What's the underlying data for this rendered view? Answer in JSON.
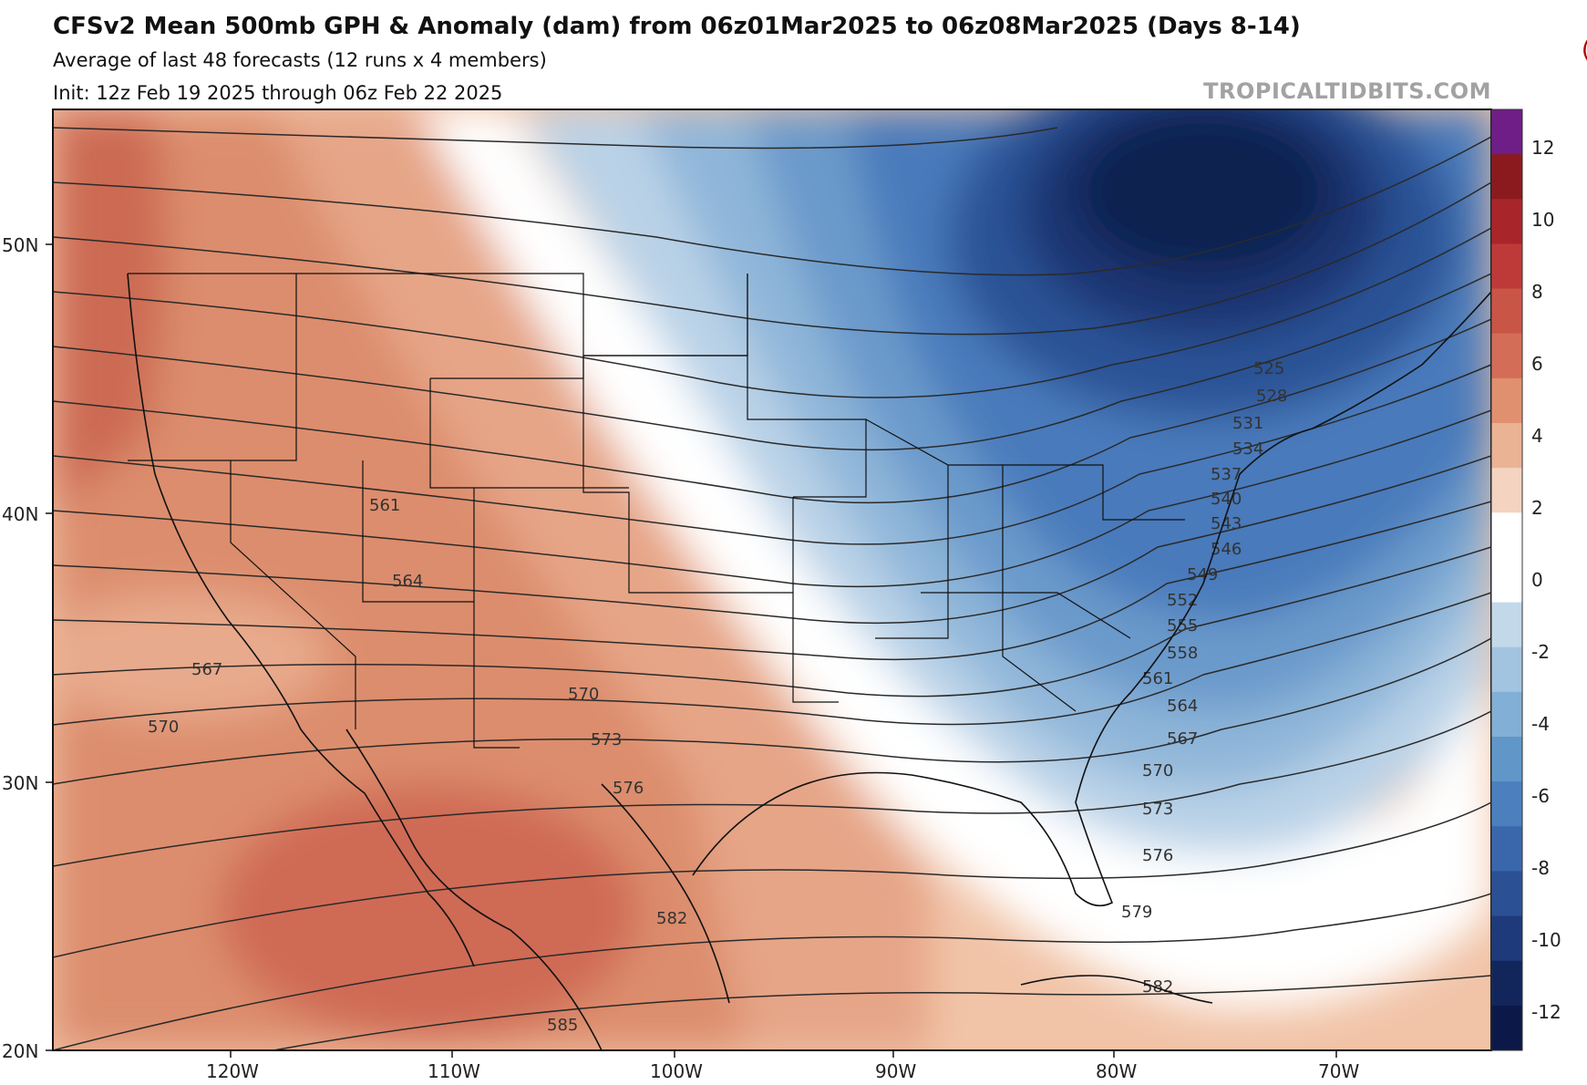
{
  "header": {
    "title": "CFSv2 Mean 500mb GPH & Anomaly (dam) from 06z01Mar2025 to 06z08Mar2025 (Days 8-14)",
    "subtitle_1": "Average of last 48 forecasts (12 runs x 4 members)",
    "subtitle_2": "Init: 12z Feb 19 2025 through 06z Feb 22 2025",
    "brand": "TROPICALTIDBITS.COM",
    "corner_mark": "("
  },
  "axes": {
    "lat_labels": [
      "50N",
      "40N",
      "30N",
      "20N"
    ],
    "lon_labels": [
      "120W",
      "110W",
      "100W",
      "90W",
      "80W",
      "70W"
    ]
  },
  "colorbar": {
    "labels": [
      "12",
      "10",
      "8",
      "6",
      "4",
      "2",
      "0",
      "-2",
      "-4",
      "-6",
      "-8",
      "-10",
      "-12"
    ],
    "colors": [
      "#6e1e86",
      "#8b1a1f",
      "#a8252a",
      "#be3a39",
      "#c95547",
      "#d36d57",
      "#e0906f",
      "#eab394",
      "#f4d3c0",
      "#ffffff",
      "#ffffff",
      "#c3d9ea",
      "#a3c4e0",
      "#82afd5",
      "#6196c8",
      "#4b7fbd",
      "#3a67ac",
      "#2c5094",
      "#1e3a7a",
      "#13265c",
      "#0b1848"
    ]
  },
  "contours": {
    "labels": [
      "525",
      "528",
      "531",
      "534",
      "537",
      "540",
      "543",
      "546",
      "549",
      "552",
      "555",
      "558",
      "561",
      "564",
      "567",
      "570",
      "573",
      "576",
      "579",
      "582",
      "585",
      "561",
      "564",
      "567",
      "570",
      "570",
      "573",
      "576",
      "582"
    ]
  }
}
